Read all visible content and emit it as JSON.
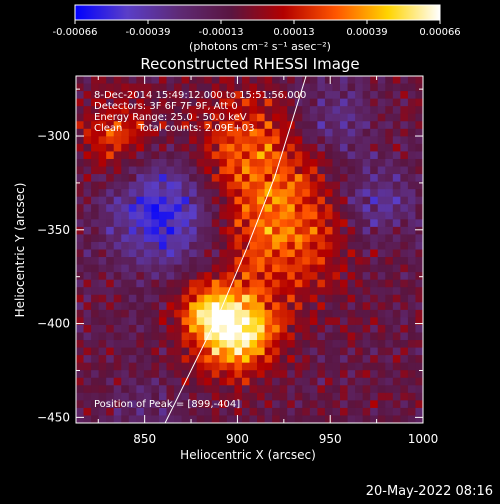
{
  "chart_data": {
    "type": "heatmap",
    "title": "Reconstructed RHESSI Image",
    "xlabel": "Heliocentric X (arcsec)",
    "ylabel": "Heliocentric Y (arcsec)",
    "xlim": [
      813,
      1000
    ],
    "ylim": [
      -453,
      -268
    ],
    "xticks": [
      850,
      900,
      950,
      1000
    ],
    "yticks": [
      -300,
      -350,
      -400,
      -450
    ],
    "colorbar": {
      "ticks": [
        "-0.00066",
        "-0.00039",
        "-0.00013",
        "0.00013",
        "0.00039",
        "0.00066"
      ],
      "range": [
        -0.00066,
        0.00066
      ],
      "unit_label": "(photons cm⁻² s⁻¹ asec⁻²)",
      "colormap": [
        "#0000ff",
        "#5a3ec8",
        "#5e2a75",
        "#5a1540",
        "#b30000",
        "#ff5500",
        "#ffd400",
        "#ffffff"
      ]
    },
    "annotations": [
      "8-Dec-2014 15:49:12.000 to 15:51:56.000",
      "Detectors: 3F 6F 7F 9F, Att 0",
      "Energy Range: 25.0 - 50.0 keV",
      "Clean     Total counts: 2.09E+03"
    ],
    "peak_label": "Position of Peak = [899,-404]",
    "peak": [
      899,
      -404
    ],
    "sources": [
      {
        "x": 899,
        "y": -404,
        "amp": 1.0,
        "sigma": 15
      },
      {
        "x": 883,
        "y": -392,
        "amp": 0.45,
        "sigma": 11
      },
      {
        "x": 925,
        "y": -350,
        "amp": 0.55,
        "sigma": 24
      },
      {
        "x": 905,
        "y": -305,
        "amp": 0.45,
        "sigma": 20
      },
      {
        "x": 835,
        "y": -300,
        "amp": 0.4,
        "sigma": 14
      },
      {
        "x": 860,
        "y": -342,
        "amp": -0.6,
        "sigma": 20
      },
      {
        "x": 975,
        "y": -335,
        "amp": -0.35,
        "sigma": 16
      },
      {
        "x": 950,
        "y": -290,
        "amp": -0.3,
        "sigma": 14
      },
      {
        "x": 850,
        "y": -448,
        "amp": -0.2,
        "sigma": 12
      }
    ],
    "limb_line": [
      [
        861,
        -453
      ],
      [
        875,
        -425
      ],
      [
        890,
        -395
      ],
      [
        905,
        -360
      ],
      [
        920,
        -322
      ],
      [
        937,
        -268
      ]
    ],
    "grid": false
  },
  "footer": {
    "date_stamp": "20-May-2022 08:16"
  }
}
